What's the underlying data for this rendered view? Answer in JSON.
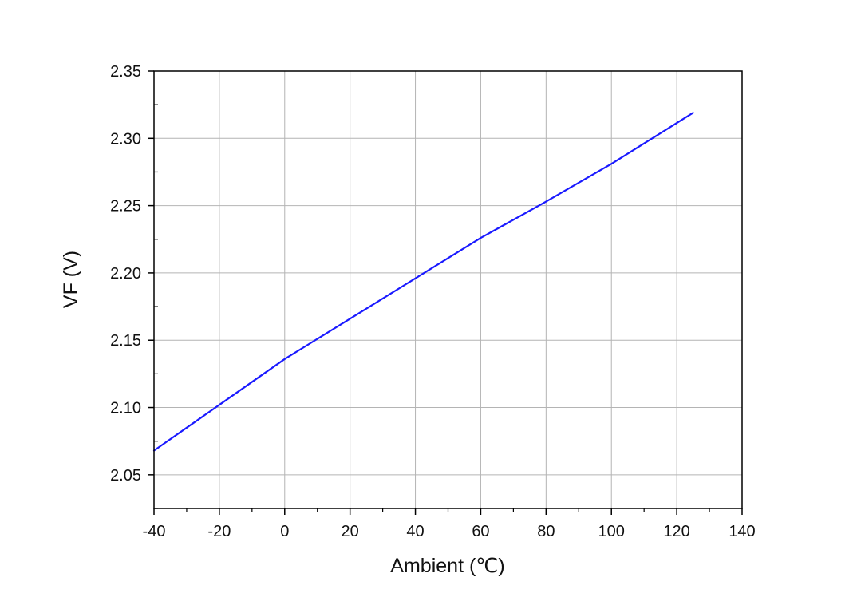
{
  "chart_data": {
    "type": "line",
    "xlabel": "Ambient (℃)",
    "ylabel": "VF (V)",
    "xlim": [
      -40,
      140
    ],
    "ylim": [
      2.025,
      2.35
    ],
    "x_ticks": [
      -40,
      -20,
      0,
      20,
      40,
      60,
      80,
      100,
      120,
      140
    ],
    "x_tick_labels": [
      "-40",
      "-20",
      "0",
      "20",
      "40",
      "60",
      "80",
      "100",
      "120",
      "140"
    ],
    "y_ticks": [
      2.05,
      2.1,
      2.15,
      2.2,
      2.25,
      2.3,
      2.35
    ],
    "y_tick_labels": [
      "2.05",
      "2.10",
      "2.15",
      "2.20",
      "2.25",
      "2.30",
      "2.35"
    ],
    "grid": true,
    "series": [
      {
        "color": "#1a1aff",
        "x": [
          -40,
          -20,
          0,
          20,
          40,
          60,
          80,
          100,
          125
        ],
        "y": [
          2.068,
          2.102,
          2.136,
          2.166,
          2.196,
          2.226,
          2.253,
          2.281,
          2.319
        ]
      }
    ]
  }
}
